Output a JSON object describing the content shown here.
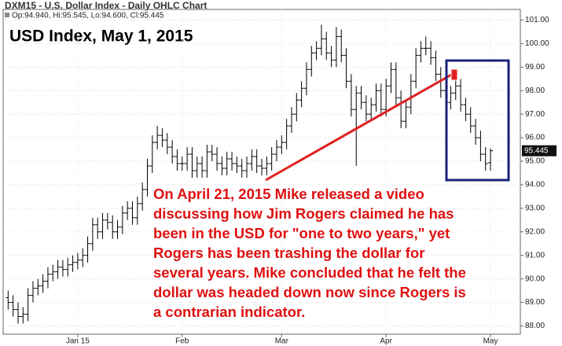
{
  "chart_data": {
    "type": "ohlc",
    "header": "DXM15 - U.S. Dollar Index - Daily OHLC Chart",
    "info": "Op:94.940, Hi:95.545, Lo:94.600, Cl:95.445",
    "title": "USD Index, May 1, 2015",
    "annotation": [
      "On April 21, 2015 Mike released a video",
      "discussing how Jim Rogers claimed he has",
      "been in the USD for \"one to two years,\" yet",
      "Rogers has been trashing the dollar for",
      "several years. Mike concluded that he felt the",
      "dollar was headed down now since Rogers is",
      "a contrarian indicator."
    ],
    "last_price_label": "95.445",
    "color": "#000000",
    "x": [
      0,
      1,
      2,
      3,
      4,
      5,
      6,
      7,
      8,
      9,
      10,
      11,
      12,
      13,
      14,
      15,
      16,
      17,
      18,
      19,
      20,
      21,
      22,
      23,
      24,
      25,
      26,
      27,
      28,
      29,
      30,
      31,
      32,
      33,
      34,
      35,
      36,
      37,
      38,
      39,
      40,
      41,
      42,
      43,
      44,
      45,
      46,
      47,
      48,
      49,
      50,
      51,
      52,
      53,
      54,
      55,
      56,
      57,
      58,
      59,
      60,
      61,
      62,
      63,
      64,
      65,
      66,
      67,
      68,
      69,
      70,
      71,
      72,
      73,
      74,
      75,
      76,
      77,
      78,
      79,
      80,
      81,
      82,
      83,
      84,
      85,
      86,
      87,
      88,
      89,
      90,
      91,
      92,
      93,
      94,
      95,
      96,
      97
    ],
    "open": [
      89.2,
      89.0,
      88.7,
      88.4,
      88.5,
      89.3,
      89.6,
      89.7,
      89.9,
      90.2,
      90.3,
      90.5,
      90.4,
      90.6,
      90.7,
      90.8,
      91.0,
      91.5,
      92.3,
      92.0,
      92.5,
      92.4,
      92.0,
      92.2,
      92.8,
      93.0,
      92.6,
      93.2,
      93.8,
      94.8,
      95.8,
      96.1,
      95.9,
      95.6,
      95.2,
      94.9,
      94.9,
      95.3,
      94.6,
      94.9,
      94.6,
      95.4,
      95.3,
      94.9,
      94.7,
      95.1,
      94.9,
      94.8,
      94.6,
      94.9,
      95.2,
      94.8,
      94.7,
      94.9,
      95.3,
      95.6,
      95.8,
      96.5,
      97.0,
      97.6,
      98.1,
      98.9,
      99.6,
      99.8,
      100.2,
      99.6,
      99.3,
      100.3,
      99.5,
      98.4,
      97.2,
      97.9,
      97.5,
      97.0,
      97.4,
      98.0,
      97.2,
      98.2,
      98.9,
      97.7,
      96.7,
      97.3,
      98.4,
      99.5,
      99.8,
      99.8,
      99.4,
      98.7,
      98.0,
      97.5,
      97.9,
      98.2,
      97.4,
      97.0,
      96.5,
      96.0,
      95.3,
      94.94
    ],
    "high": [
      89.5,
      89.3,
      89.0,
      88.8,
      89.6,
      89.9,
      90.0,
      90.2,
      90.5,
      90.6,
      90.8,
      90.8,
      90.9,
      91.0,
      91.1,
      91.3,
      91.8,
      92.6,
      92.6,
      92.8,
      92.8,
      92.7,
      92.5,
      93.1,
      93.3,
      93.3,
      93.5,
      94.1,
      95.1,
      96.1,
      96.5,
      96.4,
      96.2,
      95.9,
      95.5,
      95.2,
      95.6,
      95.6,
      95.2,
      95.2,
      95.7,
      95.7,
      95.6,
      95.2,
      95.4,
      95.4,
      95.2,
      95.1,
      95.2,
      95.5,
      95.5,
      95.1,
      95.2,
      95.6,
      95.9,
      96.1,
      96.8,
      97.3,
      97.9,
      98.4,
      99.2,
      99.9,
      100.1,
      100.8,
      100.5,
      99.9,
      100.7,
      100.6,
      99.8,
      98.7,
      98.2,
      98.2,
      97.8,
      97.7,
      98.3,
      98.3,
      98.5,
      99.2,
      99.2,
      98.0,
      97.6,
      98.7,
      99.8,
      100.1,
      100.3,
      100.1,
      99.7,
      99.0,
      98.3,
      98.2,
      98.5,
      98.5,
      97.7,
      97.3,
      96.8,
      96.3,
      95.6,
      95.545
    ],
    "low": [
      88.7,
      88.4,
      88.1,
      88.1,
      88.2,
      89.0,
      89.3,
      89.4,
      89.6,
      89.9,
      90.0,
      90.1,
      90.1,
      90.3,
      90.4,
      90.5,
      90.7,
      91.2,
      91.7,
      91.7,
      92.1,
      91.7,
      91.7,
      91.9,
      92.5,
      92.3,
      92.3,
      92.9,
      93.5,
      94.5,
      95.5,
      95.6,
      95.3,
      94.9,
      94.6,
      94.6,
      94.6,
      94.3,
      94.3,
      94.3,
      94.3,
      95.0,
      94.6,
      94.4,
      94.4,
      94.6,
      94.5,
      94.3,
      94.3,
      94.6,
      94.5,
      94.4,
      94.4,
      94.6,
      95.0,
      95.3,
      95.5,
      96.2,
      96.7,
      97.3,
      97.8,
      98.6,
      99.3,
      99.5,
      99.3,
      99.0,
      99.0,
      99.2,
      98.1,
      96.9,
      94.8,
      97.2,
      96.7,
      96.7,
      97.1,
      96.9,
      96.9,
      97.9,
      97.4,
      96.4,
      96.4,
      97.0,
      98.1,
      99.2,
      99.5,
      99.1,
      98.4,
      97.7,
      97.2,
      97.2,
      97.6,
      97.1,
      96.7,
      96.2,
      95.7,
      95.0,
      94.6,
      94.6
    ],
    "close": [
      89.0,
      88.7,
      88.4,
      88.5,
      89.3,
      89.6,
      89.7,
      89.9,
      90.2,
      90.3,
      90.5,
      90.4,
      90.6,
      90.7,
      90.8,
      91.0,
      91.5,
      92.3,
      92.0,
      92.5,
      92.4,
      92.0,
      92.2,
      92.8,
      93.0,
      92.6,
      93.2,
      93.8,
      94.8,
      95.8,
      96.1,
      95.9,
      95.6,
      95.2,
      94.9,
      94.9,
      95.3,
      94.6,
      94.9,
      94.6,
      95.4,
      95.3,
      94.9,
      94.7,
      95.1,
      94.9,
      94.8,
      94.6,
      94.9,
      95.2,
      94.8,
      94.7,
      94.9,
      95.3,
      95.6,
      95.8,
      96.5,
      97.0,
      97.6,
      98.1,
      98.9,
      99.6,
      99.8,
      100.2,
      99.6,
      99.3,
      100.3,
      99.5,
      98.4,
      97.2,
      97.9,
      97.5,
      97.0,
      97.4,
      98.0,
      97.2,
      98.2,
      98.9,
      97.7,
      96.7,
      97.3,
      98.4,
      99.5,
      99.8,
      99.8,
      99.4,
      98.7,
      98.0,
      97.5,
      97.9,
      98.2,
      97.4,
      97.0,
      96.5,
      96.0,
      95.3,
      94.9,
      95.445
    ],
    "xlim": [
      -1,
      103
    ],
    "xticks": [
      {
        "value": 14,
        "label": "Jan 15"
      },
      {
        "value": 35,
        "label": "Feb"
      },
      {
        "value": 55,
        "label": "Mar"
      },
      {
        "value": 76,
        "label": "Apr"
      },
      {
        "value": 97,
        "label": "May"
      }
    ],
    "ylim": [
      87.65,
      101.45
    ],
    "yticks": [
      {
        "value": 88,
        "label": "88.00"
      },
      {
        "value": 89,
        "label": "89.00"
      },
      {
        "value": 90,
        "label": "90.00"
      },
      {
        "value": 91,
        "label": "91.00"
      },
      {
        "value": 92,
        "label": "92.00"
      },
      {
        "value": 93,
        "label": "93.00"
      },
      {
        "value": 94,
        "label": "94.00"
      },
      {
        "value": 95,
        "label": "95.00"
      },
      {
        "value": 96,
        "label": "96.00"
      },
      {
        "value": 97,
        "label": "97.00"
      },
      {
        "value": 98,
        "label": "98.00"
      },
      {
        "value": 99,
        "label": "99.00"
      },
      {
        "value": 100,
        "label": "100.00"
      },
      {
        "value": 101,
        "label": "101.00"
      }
    ],
    "grid": true
  }
}
